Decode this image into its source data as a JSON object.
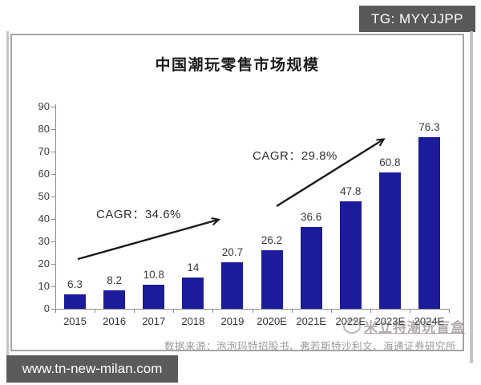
{
  "badges": {
    "tg": "TG: MYYJJPP",
    "url": "www.tn-new-milan.com"
  },
  "chart_data": {
    "type": "bar",
    "title": "中国潮玩零售市场规模",
    "categories": [
      "2015",
      "2016",
      "2017",
      "2018",
      "2019",
      "2020E",
      "2021E",
      "2022E",
      "2023E",
      "2024E"
    ],
    "values": [
      6.3,
      8.2,
      10.8,
      14,
      20.7,
      26.2,
      36.6,
      47.8,
      60.8,
      76.3
    ],
    "ylim": [
      0,
      90
    ],
    "ytick_step": 10,
    "yticks": [
      0,
      10,
      20,
      30,
      40,
      50,
      60,
      70,
      80,
      90
    ],
    "bar_color": "#1b1b9b",
    "grid": false,
    "legend": false,
    "annotations": [
      {
        "label": "CAGR：34.6%"
      },
      {
        "label": "CAGR：29.8%"
      }
    ],
    "source": "数据来源：泡泡玛特招股书、弗若斯特沙利文、海通证券研究所"
  },
  "watermark": {
    "text": "米立特潮玩盲盒"
  }
}
